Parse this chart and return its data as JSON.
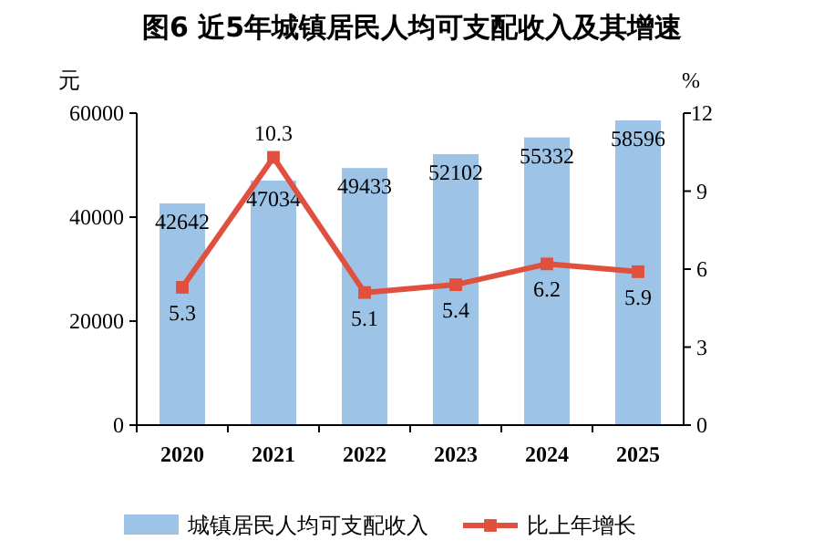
{
  "chart_data": {
    "type": "bar",
    "title": "图6 近5年城镇居民人均可支配收入及其增速",
    "ylabel": "元",
    "y2label": "%",
    "categories": [
      "2020",
      "2021",
      "2022",
      "2023",
      "2024",
      "2025"
    ],
    "series": [
      {
        "name": "城镇居民人均可支配收入",
        "color": "#9dc3e6",
        "values": [
          42642,
          47034,
          49433,
          52102,
          55332,
          58596
        ]
      },
      {
        "name": "比上年增长",
        "type": "line",
        "axis": "y2",
        "color": "#e0503e",
        "marker": "square",
        "values": [
          5.3,
          10.3,
          5.1,
          5.4,
          6.2,
          5.9
        ]
      }
    ],
    "ylim": [
      0,
      60000
    ],
    "yticks": [
      0,
      20000,
      40000,
      60000
    ],
    "y2lim": [
      0,
      12
    ],
    "y2ticks": [
      0,
      3,
      6,
      9,
      12
    ],
    "data_labels": true,
    "legend": "bottom",
    "grid": false
  }
}
